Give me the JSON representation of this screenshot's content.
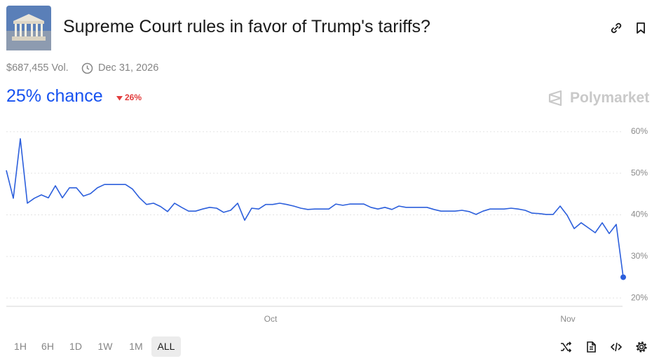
{
  "header": {
    "title": "Supreme Court rules in favor of Trump's tariffs?",
    "volume": "$687,455 Vol.",
    "end_date": "Dec 31, 2026"
  },
  "probability": {
    "chance": "25% chance",
    "change": "26%"
  },
  "brand": "Polymarket",
  "chart_data": {
    "type": "line",
    "color": "#2c5fdc",
    "values": [
      50.7,
      44,
      58.3,
      42.8,
      44,
      44.8,
      44.1,
      47,
      44.1,
      46.5,
      46.5,
      44.5,
      45.1,
      46.5,
      47.3,
      47.3,
      47.3,
      47.3,
      46.2,
      44.1,
      42.5,
      42.8,
      42,
      40.8,
      42.8,
      41.8,
      40.9,
      40.9,
      41.4,
      41.8,
      41.6,
      40.6,
      41.1,
      42.8,
      38.7,
      41.6,
      41.4,
      42.5,
      42.5,
      42.8,
      42.5,
      42.1,
      41.6,
      41.3,
      41.4,
      41.4,
      41.4,
      42.6,
      42.3,
      42.6,
      42.6,
      42.6,
      41.8,
      41.4,
      41.8,
      41.3,
      42.1,
      41.8,
      41.8,
      41.8,
      41.8,
      41.3,
      40.9,
      40.9,
      40.9,
      41.1,
      40.8,
      40.1,
      40.9,
      41.4,
      41.4,
      41.4,
      41.6,
      41.4,
      41.1,
      40.4,
      40.3,
      40.1,
      40.1,
      42.1,
      39.9,
      36.7,
      38.1,
      36.9,
      35.7,
      38.1,
      35.5,
      37.7,
      25
    ],
    "xlim": [
      0,
      88
    ],
    "xticks": [
      {
        "value": 37.7,
        "label": "Oct"
      },
      {
        "value": 80.1,
        "label": "Nov"
      }
    ],
    "ylim": [
      18,
      62
    ],
    "yticks": [
      {
        "value": 20,
        "label": "20%"
      },
      {
        "value": 30,
        "label": "30%"
      },
      {
        "value": 40,
        "label": "40%"
      },
      {
        "value": 50,
        "label": "50%"
      },
      {
        "value": 60,
        "label": "60%"
      }
    ],
    "grid": true
  },
  "controls": {
    "ranges": [
      "1H",
      "6H",
      "1D",
      "1W",
      "1M",
      "ALL"
    ],
    "active": "ALL"
  }
}
